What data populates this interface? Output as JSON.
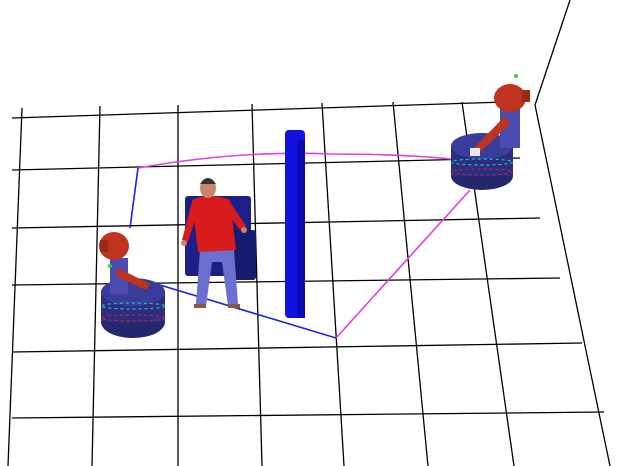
{
  "scene": {
    "kind": "3d-simulation-viewport",
    "background_color": "#ffffff",
    "grid_color": "#000000",
    "objects": [
      {
        "name": "human-figure",
        "shirt_color": "#d81c1c",
        "pants_color": "#6a6fd0",
        "skin_color": "#c8866a"
      },
      {
        "name": "chair",
        "color": "#1c1f86"
      },
      {
        "name": "wall-panel",
        "color": "#1212e0"
      },
      {
        "name": "robot-left",
        "body_color": "#3a3c9c",
        "base_color": "#24266e",
        "head_color": "#c0331e"
      },
      {
        "name": "robot-right",
        "body_color": "#3a3c9c",
        "base_color": "#24266e",
        "head_color": "#c0331e"
      }
    ],
    "paths": [
      {
        "name": "blue-path",
        "color": "#2020e0"
      },
      {
        "name": "magenta-path",
        "color": "#e040e0"
      }
    ]
  }
}
